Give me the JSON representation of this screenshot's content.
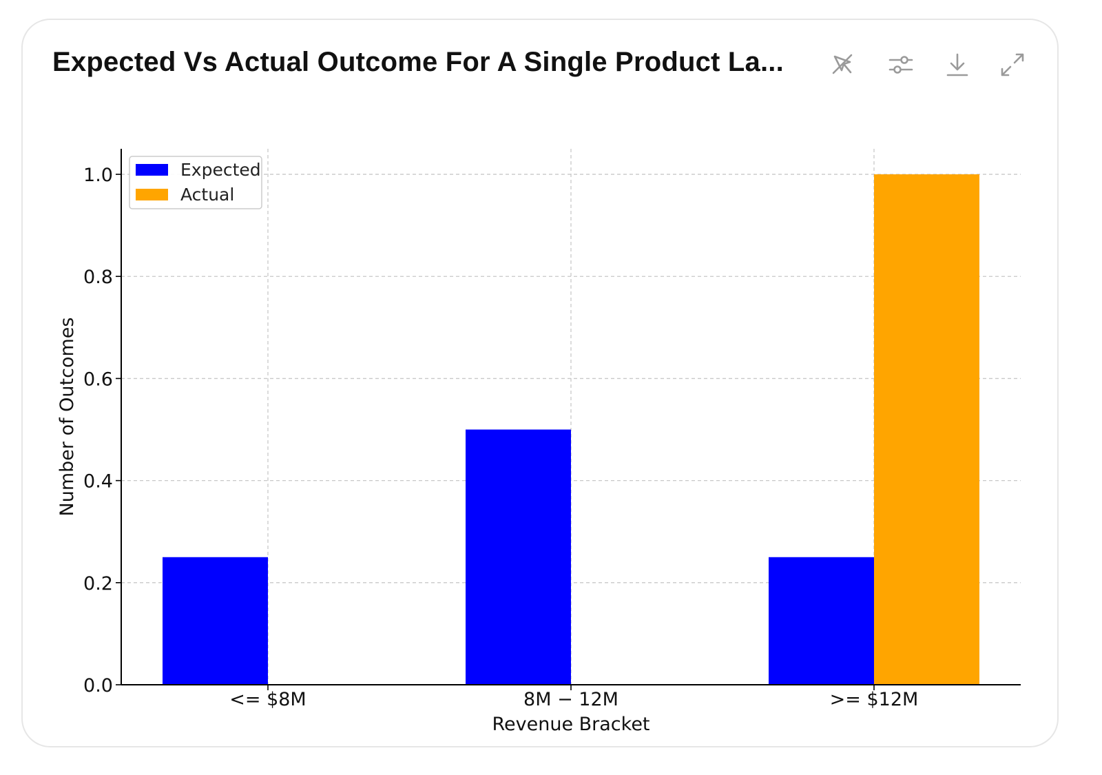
{
  "card": {
    "title": "Expected Vs Actual Outcome For A Single Product La...",
    "toolbar": [
      {
        "name": "interactive-toggle-icon",
        "label": "Toggle interactive"
      },
      {
        "name": "settings-sliders-icon",
        "label": "Chart settings"
      },
      {
        "name": "download-icon",
        "label": "Download"
      },
      {
        "name": "expand-icon",
        "label": "Expand"
      }
    ]
  },
  "chart_data": {
    "type": "bar",
    "categories": [
      "<= $8M",
      "$8M - $12M",
      ">= $12M"
    ],
    "category_tick_labels": [
      "<= $8M",
      "8M − 12M",
      ">= $12M"
    ],
    "series": [
      {
        "name": "Expected",
        "values": [
          0.25,
          0.5,
          0.25
        ],
        "color": "#0000ff"
      },
      {
        "name": "Actual",
        "values": [
          0,
          0,
          1.0
        ],
        "color": "#ffa500"
      }
    ],
    "xlabel": "Revenue Bracket",
    "ylabel": "Number of Outcomes",
    "ylim": [
      0,
      1.05
    ],
    "yticks": [
      0.0,
      0.2,
      0.4,
      0.6,
      0.8,
      1.0
    ],
    "ytick_labels": [
      "0.0",
      "0.2",
      "0.4",
      "0.6",
      "0.8",
      "1.0"
    ],
    "grid": true,
    "legend": "top-left"
  }
}
